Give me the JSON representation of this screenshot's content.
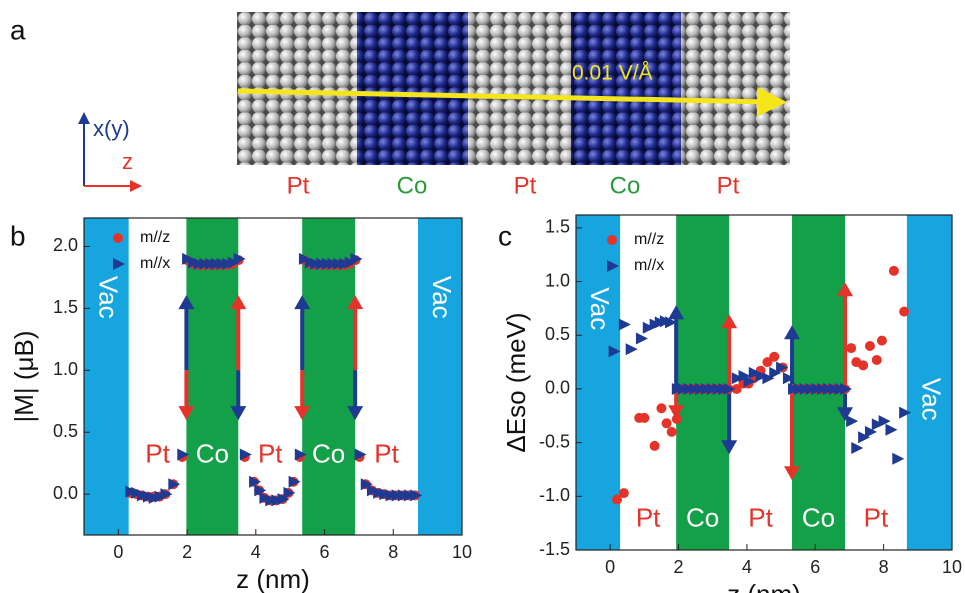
{
  "structure": {
    "panel": "a",
    "vertical_axis": "x(y)",
    "horizontal_axis": "z",
    "layers": [
      "Pt",
      "Co",
      "Pt",
      "Co",
      "Pt"
    ],
    "field": "0.01 V/Å"
  },
  "chart_data": [
    {
      "type": "scatter",
      "panel": "b",
      "x_label": "z (nm)",
      "y_label": "|M| (μB)",
      "xlim": [
        -1,
        10
      ],
      "xticks": [
        0,
        2,
        4,
        6,
        8,
        10
      ],
      "ylim": [
        -0.33,
        2.23
      ],
      "yticks": [
        {
          "value": 0,
          "label": "0.0"
        },
        0.5,
        {
          "value": 1,
          "label": "1.0"
        },
        1.5,
        {
          "value": 2,
          "label": "2.0"
        }
      ],
      "regions": [
        {
          "label": "Vac",
          "start": -1,
          "end": 0.3,
          "color": "#17a5df"
        },
        {
          "label": "Pt",
          "start": 0.3,
          "end": 1.98
        },
        {
          "label": "Co",
          "start": 1.98,
          "end": 3.49,
          "color": "#13a048"
        },
        {
          "label": "Pt",
          "start": 3.49,
          "end": 5.35
        },
        {
          "label": "Co",
          "start": 5.35,
          "end": 6.89,
          "color": "#13a048"
        },
        {
          "label": "Pt",
          "start": 6.89,
          "end": 8.72
        },
        {
          "label": "Vac",
          "start": 8.72,
          "end": 10,
          "color": "#17a5df"
        }
      ],
      "series": [
        {
          "name": "m//z",
          "color": "#e5332a",
          "marker": "circle",
          "x": [
            0.35,
            0.52,
            0.69,
            0.86,
            1.03,
            1.2,
            1.37,
            1.6,
            1.86,
            2.0,
            2.17,
            2.33,
            2.5,
            2.67,
            2.83,
            3.0,
            3.17,
            3.33,
            3.5,
            3.68,
            3.95,
            4.1,
            4.25,
            4.42,
            4.6,
            4.78,
            4.95,
            5.1,
            5.28,
            5.4,
            5.57,
            5.73,
            5.9,
            6.07,
            6.23,
            6.4,
            6.57,
            6.73,
            6.9,
            7.02,
            7.2,
            7.38,
            7.56,
            7.74,
            7.92,
            8.1,
            8.28,
            8.46,
            8.64
          ],
          "values": [
            0.01,
            0.0,
            -0.01,
            -0.02,
            -0.02,
            -0.02,
            0.0,
            0.08,
            0.3,
            1.89,
            1.86,
            1.85,
            1.85,
            1.85,
            1.85,
            1.85,
            1.85,
            1.86,
            1.89,
            0.3,
            0.1,
            0.03,
            -0.03,
            -0.05,
            -0.05,
            -0.04,
            0.01,
            0.1,
            0.3,
            1.89,
            1.86,
            1.85,
            1.85,
            1.85,
            1.85,
            1.85,
            1.85,
            1.86,
            1.89,
            0.3,
            0.08,
            0.03,
            0.01,
            0.0,
            -0.01,
            -0.01,
            -0.01,
            -0.01,
            -0.01
          ]
        },
        {
          "name": "m//x",
          "color": "#1e3a92",
          "marker": "triangle",
          "x": [
            0.35,
            0.52,
            0.69,
            0.86,
            1.03,
            1.2,
            1.37,
            1.6,
            1.86,
            2.0,
            2.17,
            2.33,
            2.5,
            2.67,
            2.83,
            3.0,
            3.17,
            3.33,
            3.5,
            3.68,
            3.95,
            4.1,
            4.25,
            4.42,
            4.6,
            4.78,
            4.95,
            5.1,
            5.28,
            5.4,
            5.57,
            5.73,
            5.9,
            6.07,
            6.23,
            6.4,
            6.57,
            6.73,
            6.9,
            7.02,
            7.2,
            7.38,
            7.56,
            7.74,
            7.92,
            8.1,
            8.28,
            8.46,
            8.64
          ],
          "values": [
            0.02,
            0.01,
            -0.01,
            -0.02,
            -0.03,
            -0.02,
            0.0,
            0.08,
            0.32,
            1.9,
            1.87,
            1.86,
            1.86,
            1.86,
            1.86,
            1.86,
            1.86,
            1.87,
            1.9,
            0.32,
            0.1,
            0.03,
            -0.03,
            -0.05,
            -0.05,
            -0.04,
            0.01,
            0.1,
            0.32,
            1.9,
            1.87,
            1.86,
            1.86,
            1.86,
            1.86,
            1.86,
            1.86,
            1.87,
            1.9,
            0.32,
            0.08,
            0.03,
            0.01,
            0.0,
            -0.01,
            -0.01,
            -0.01,
            -0.01,
            -0.01
          ]
        }
      ]
    },
    {
      "type": "scatter",
      "panel": "c",
      "x_label": "z (nm)",
      "y_label": "ΔEso (meV)",
      "xlim": [
        -1,
        10
      ],
      "xticks": [
        0,
        2,
        4,
        6,
        8,
        10
      ],
      "ylim": [
        -1.5,
        1.62
      ],
      "yticks": [
        -1.5,
        {
          "value": -1,
          "label": "-1.0"
        },
        -0.5,
        {
          "value": 0,
          "label": "0.0"
        },
        0.5,
        {
          "value": 1,
          "label": "1.0"
        },
        1.5
      ],
      "regions": [
        {
          "label": "Vac",
          "start": -1,
          "end": 0.29,
          "color": "#17a5df"
        },
        {
          "label": "Pt",
          "start": 0.29,
          "end": 1.93
        },
        {
          "label": "Co",
          "start": 1.93,
          "end": 3.48,
          "color": "#13a048"
        },
        {
          "label": "Pt",
          "start": 3.48,
          "end": 5.32
        },
        {
          "label": "Co",
          "start": 5.32,
          "end": 6.87,
          "color": "#13a048"
        },
        {
          "label": "Pt",
          "start": 6.87,
          "end": 8.68
        },
        {
          "label": "Vac",
          "start": 8.68,
          "end": 10,
          "color": "#17a5df"
        }
      ],
      "series": [
        {
          "name": "m//z",
          "color": "#e5332a",
          "marker": "circle",
          "x": [
            0.2,
            0.4,
            0.85,
            1.0,
            1.3,
            1.5,
            1.65,
            1.8,
            1.95,
            2.1,
            2.27,
            2.44,
            2.61,
            2.78,
            2.95,
            3.12,
            3.29,
            3.46,
            3.7,
            3.9,
            4.05,
            4.2,
            4.4,
            4.6,
            4.8,
            5.05,
            5.35,
            5.52,
            5.69,
            5.86,
            6.03,
            6.2,
            6.37,
            6.54,
            6.71,
            6.87,
            7.05,
            7.2,
            7.4,
            7.6,
            7.8,
            7.95,
            8.3,
            8.6
          ],
          "values": [
            -1.03,
            -0.97,
            -0.27,
            -0.27,
            -0.53,
            -0.18,
            -0.32,
            -0.4,
            -0.28,
            0.0,
            0.0,
            0.0,
            0.0,
            0.0,
            0.0,
            0.0,
            0.0,
            0.0,
            0.0,
            0.05,
            0.05,
            0.1,
            0.17,
            0.25,
            0.3,
            0.2,
            0.0,
            0.0,
            0.0,
            0.0,
            0.0,
            0.0,
            0.0,
            0.0,
            0.0,
            0.0,
            0.38,
            0.25,
            0.22,
            0.4,
            0.27,
            0.45,
            1.1,
            0.72
          ]
        },
        {
          "name": "m//x",
          "color": "#1e3a92",
          "marker": "triangle",
          "x": [
            0.1,
            0.4,
            0.6,
            0.9,
            1.1,
            1.3,
            1.45,
            1.6,
            1.75,
            1.95,
            2.12,
            2.29,
            2.46,
            2.63,
            2.8,
            2.97,
            3.14,
            3.31,
            3.46,
            3.7,
            3.9,
            4.05,
            4.2,
            4.4,
            4.6,
            4.8,
            5.0,
            5.2,
            5.35,
            5.52,
            5.69,
            5.86,
            6.03,
            6.2,
            6.37,
            6.54,
            6.71,
            6.87,
            7.05,
            7.2,
            7.4,
            7.6,
            7.8,
            8.0,
            8.2,
            8.4,
            8.6
          ],
          "values": [
            0.35,
            0.6,
            0.37,
            0.47,
            0.57,
            0.6,
            0.62,
            0.63,
            0.62,
            0.0,
            0.0,
            0.0,
            0.0,
            0.0,
            0.0,
            0.0,
            0.0,
            0.0,
            0.0,
            0.1,
            0.12,
            0.07,
            0.15,
            0.12,
            0.1,
            0.15,
            0.2,
            0.1,
            0.0,
            0.0,
            0.0,
            0.0,
            0.0,
            0.0,
            0.0,
            0.0,
            0.0,
            0.0,
            -0.3,
            -0.55,
            -0.45,
            -0.4,
            -0.33,
            -0.3,
            -0.38,
            -0.65,
            -0.22
          ]
        }
      ]
    }
  ]
}
